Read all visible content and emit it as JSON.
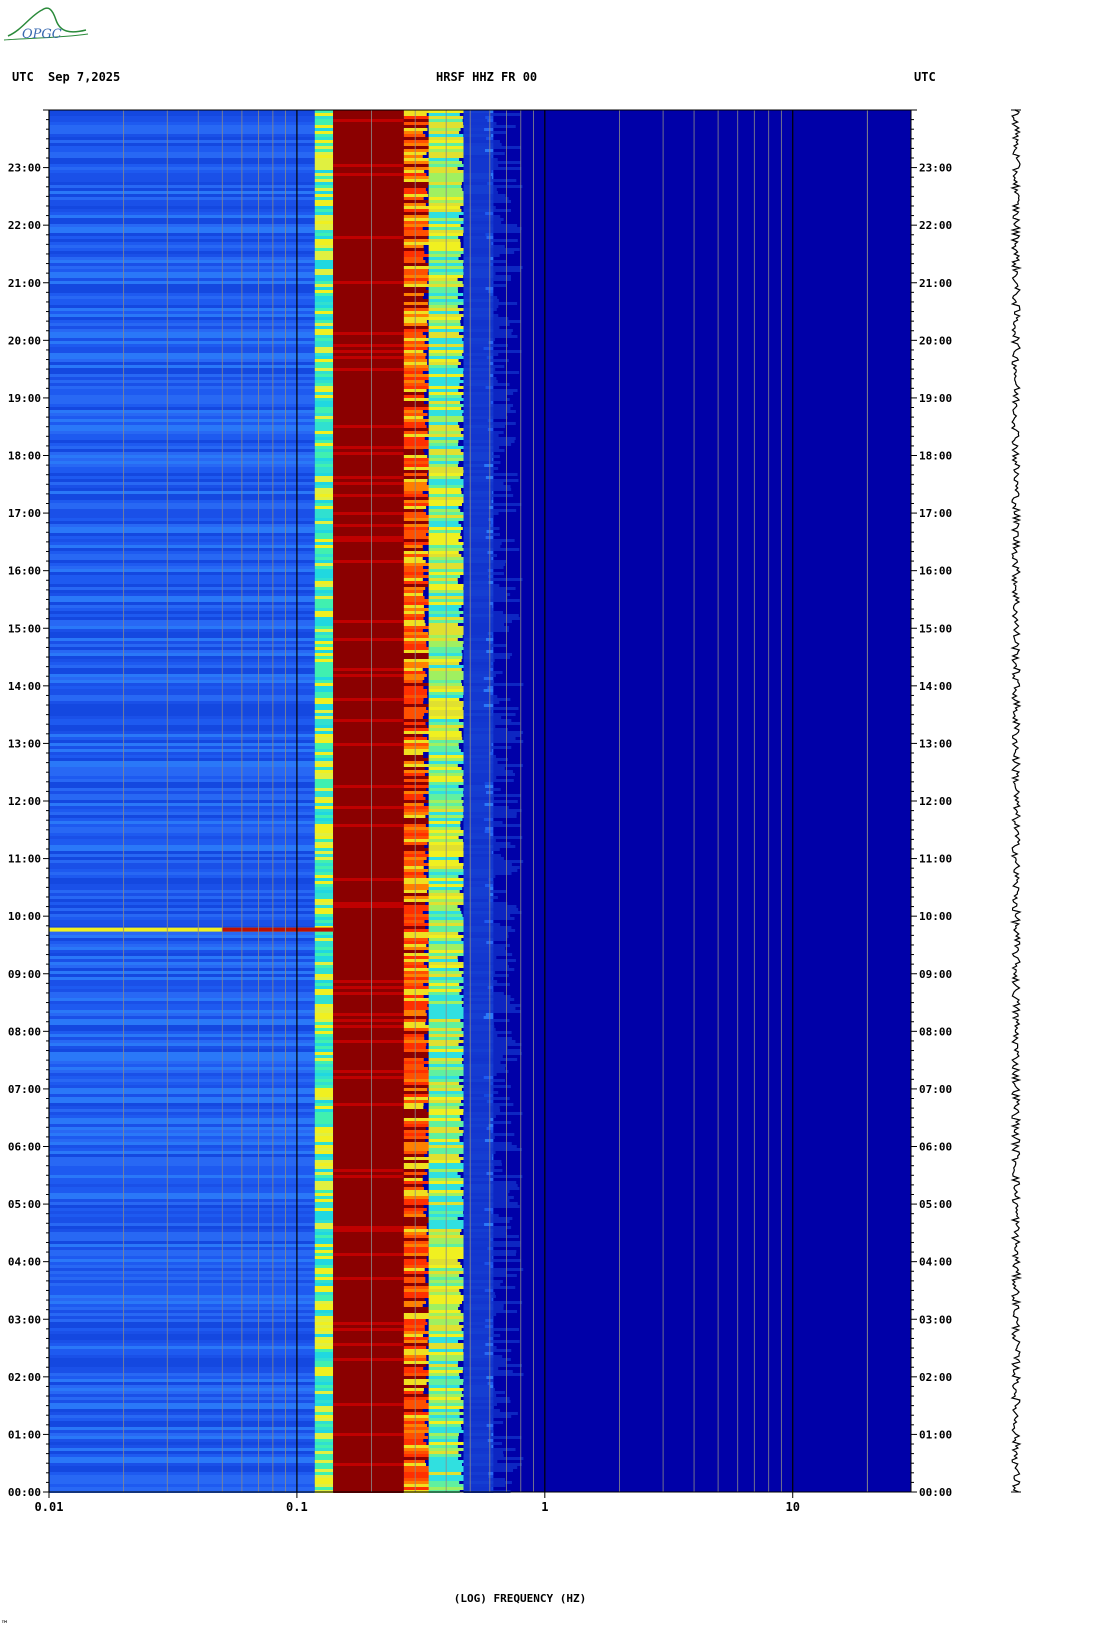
{
  "header": {
    "left_tz": "UTC",
    "date": "Sep 7,2025",
    "station": "HRSF HHZ FR 00",
    "right_tz": "UTC"
  },
  "logo": {
    "text": "OPGC"
  },
  "colors": {
    "background_low": "#0000a8",
    "mid_blue": "#1060f0",
    "cyan": "#20e0e0",
    "yellow": "#f0f020",
    "orange": "#ff6000",
    "dark_red": "#8b0000",
    "axis": "#000000"
  },
  "chart_data": {
    "type": "heatmap",
    "title": "HRSF HHZ FR 00",
    "xlabel": "(LOG) FREQUENCY (HZ)",
    "ylabel": "",
    "x_scale": "log",
    "x_range_hz": [
      0.01,
      30
    ],
    "x_tick_labels": [
      {
        "value": 0.01,
        "label": "0.01"
      },
      {
        "value": 0.1,
        "label": "0.1"
      },
      {
        "value": 1,
        "label": "1"
      },
      {
        "value": 10,
        "label": "10"
      }
    ],
    "y_range_utc_hours": [
      0,
      24
    ],
    "y_tick_labels": [
      "00:00",
      "01:00",
      "02:00",
      "03:00",
      "04:00",
      "05:00",
      "06:00",
      "07:00",
      "08:00",
      "09:00",
      "10:00",
      "11:00",
      "12:00",
      "13:00",
      "14:00",
      "15:00",
      "16:00",
      "17:00",
      "18:00",
      "19:00",
      "20:00",
      "21:00",
      "22:00",
      "23:00"
    ],
    "spectral_bands_hz": [
      {
        "from": 0.01,
        "to": 0.118,
        "level": "blue"
      },
      {
        "from": 0.118,
        "to": 0.14,
        "level": "cyan-yellow"
      },
      {
        "from": 0.14,
        "to": 0.27,
        "level": "dark-red"
      },
      {
        "from": 0.27,
        "to": 0.34,
        "level": "orange-yellow"
      },
      {
        "from": 0.34,
        "to": 0.47,
        "level": "yellow-cyan"
      },
      {
        "from": 0.47,
        "to": 0.62,
        "level": "blue"
      },
      {
        "from": 0.62,
        "to": 30,
        "level": "dark-blue"
      }
    ],
    "events": [
      {
        "time_utc": "09:46",
        "freq_from_hz": 0.01,
        "freq_to_hz": 0.14,
        "level": "red"
      }
    ],
    "grid": true,
    "legend": "none"
  },
  "footer": {
    "corner_mark": "™"
  }
}
